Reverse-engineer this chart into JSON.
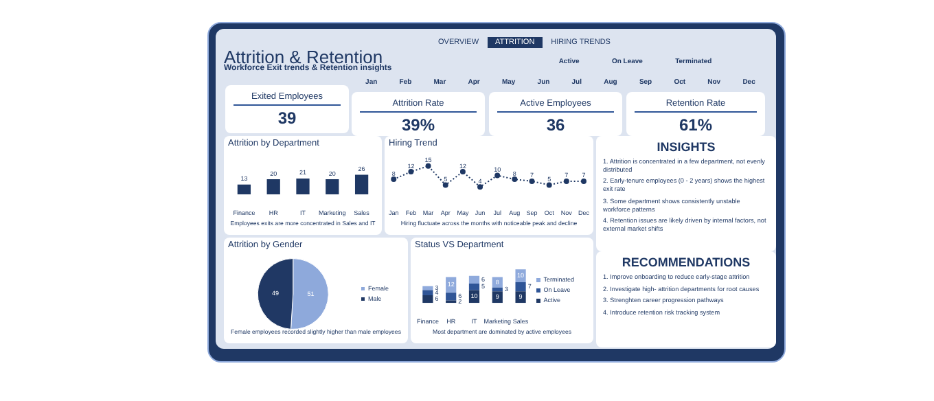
{
  "chart_data": [
    {
      "type": "other",
      "title": "Attrition & Retention",
      "subtitle": "Workforce Exit trends & Retention insights",
      "annotations": [
        "OVERVIEW",
        "ATTRITION",
        "HIRING TRENDS"
      ]
    },
    {
      "type": "other",
      "annotations": [
        "Active",
        "On Leave",
        "Terminated"
      ]
    },
    {
      "type": "other",
      "annotations": [
        "Jan",
        "Feb",
        "Mar",
        "Apr",
        "May",
        "Jun",
        "Jul",
        "Aug",
        "Sep",
        "Oct",
        "Nov",
        "Dec"
      ]
    },
    {
      "type": "other",
      "title": "Exited Employees",
      "annotations": [
        "39"
      ]
    },
    {
      "type": "other",
      "title": "Attrition Rate",
      "annotations": [
        "39%"
      ]
    },
    {
      "type": "other",
      "title": "Active Employees",
      "annotations": [
        "36"
      ]
    },
    {
      "type": "other",
      "title": "Retention Rate",
      "annotations": [
        "61%"
      ]
    },
    {
      "type": "bar",
      "title": "Attrition by Department",
      "categories": [
        "Finance",
        "HR",
        "IT",
        "Marketing",
        "Sales"
      ],
      "values": [
        13,
        20,
        21,
        20,
        26
      ],
      "color": "#1f3864",
      "data_labels": true,
      "annotations": [
        "Employees exits are more concentrated in Sales and IT"
      ]
    },
    {
      "type": "line",
      "title": "Hiring Trend",
      "categories": [
        "Jan",
        "Feb",
        "Mar",
        "Apr",
        "May",
        "Jun",
        "Jul",
        "Aug",
        "Sep",
        "Oct",
        "Nov",
        "Dec"
      ],
      "values": [
        8,
        12,
        15,
        5,
        12,
        4,
        10,
        8,
        7,
        5,
        7,
        7
      ],
      "color": "#1f3864",
      "marker": "circle",
      "line_style": "dotted",
      "data_labels": true,
      "annotations": [
        "Hiring fluctuate across the months with noticeable peak and decline"
      ]
    },
    {
      "type": "pie",
      "title": "Attrition by Gender",
      "categories": [
        "Female",
        "Male"
      ],
      "values": [
        51,
        49
      ],
      "colors": [
        "#8ea9db",
        "#203864"
      ],
      "legend": "right",
      "data_labels": true,
      "annotations": [
        "Female employees recorded slightly higher than male employees"
      ]
    },
    {
      "type": "bar",
      "title": "Status VS Department",
      "categories": [
        "Finance",
        "HR",
        "IT",
        "Marketing",
        "Sales"
      ],
      "stacked": true,
      "legend": "right",
      "data_labels": true,
      "series": [
        {
          "name": "Active",
          "color": "#1f3864",
          "values": [
            6,
            2,
            10,
            9,
            9
          ]
        },
        {
          "name": "On Leave",
          "color": "#2f5597",
          "values": [
            4,
            6,
            5,
            3,
            7
          ]
        },
        {
          "name": "Terminated",
          "color": "#8faadc",
          "values": [
            3,
            12,
            6,
            8,
            10
          ]
        }
      ],
      "annotations": [
        "Most department are dominated by active employees"
      ]
    },
    {
      "type": "other",
      "title": "INSIGHTS",
      "annotations": [
        "1. Attrition is concentrated in a few department, not evenly distributed",
        "2. Early-tenure employees (0 - 2 years) shows the highest exit rate",
        "3. Some department shows consistently unstable workforce patterns",
        "4. Retention issues are likely driven by internal factors, not external market shifts"
      ]
    },
    {
      "type": "other",
      "title": "RECOMMENDATIONS",
      "annotations": [
        "1. Improve onboarding to reduce early-stage attrition",
        "2. Investigate high- attrition departments for root causes",
        "3. Strenghten career progression pathways",
        "4. Introduce retention risk tracking system"
      ]
    }
  ]
}
